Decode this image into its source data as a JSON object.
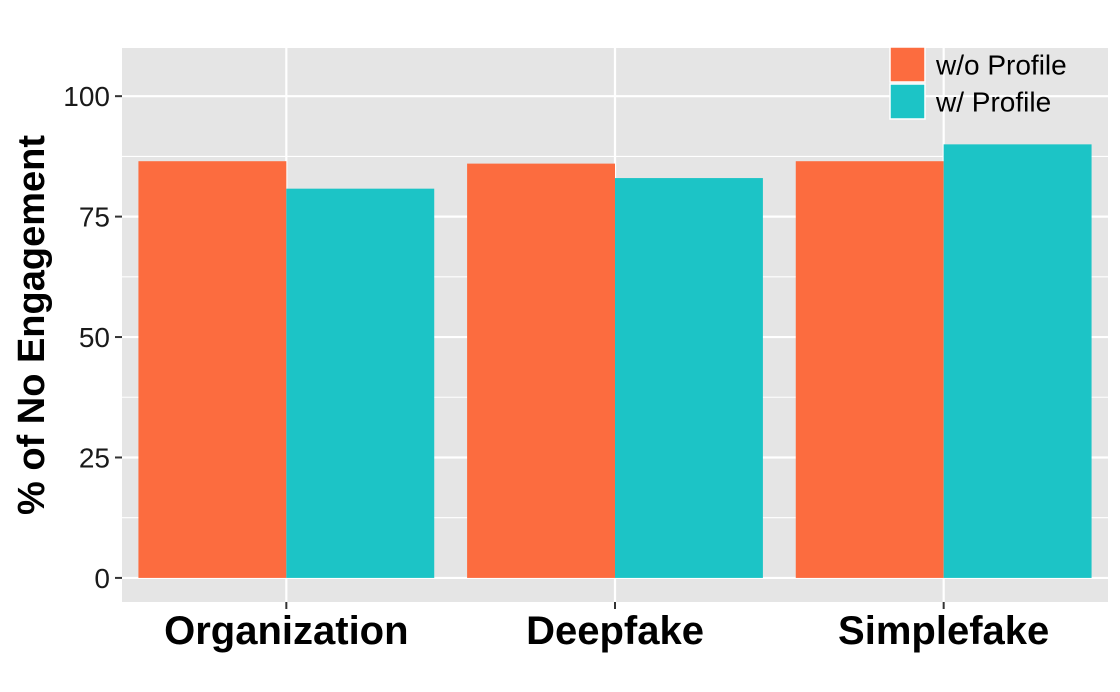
{
  "chart_data": {
    "type": "bar",
    "title": "",
    "xlabel": "",
    "ylabel": "% of No Engagement",
    "categories": [
      "Organization",
      "Deepfake",
      "Simplefake"
    ],
    "series": [
      {
        "name": "w/o Profile",
        "color": "#FC6C3F",
        "values": [
          86.5,
          86.0,
          86.5
        ]
      },
      {
        "name": "w/ Profile",
        "color": "#1CC4C6",
        "values": [
          80.8,
          83.0,
          90.0
        ]
      }
    ],
    "ylim": [
      -5,
      110
    ],
    "yticks": [
      0,
      25,
      50,
      75,
      100
    ],
    "ytick_labels": [
      "0",
      "25",
      "50",
      "75",
      "100"
    ],
    "grid": true,
    "legend_position": "top-right",
    "panel_background": "#E5E5E5",
    "grid_color": "#FFFFFF"
  }
}
